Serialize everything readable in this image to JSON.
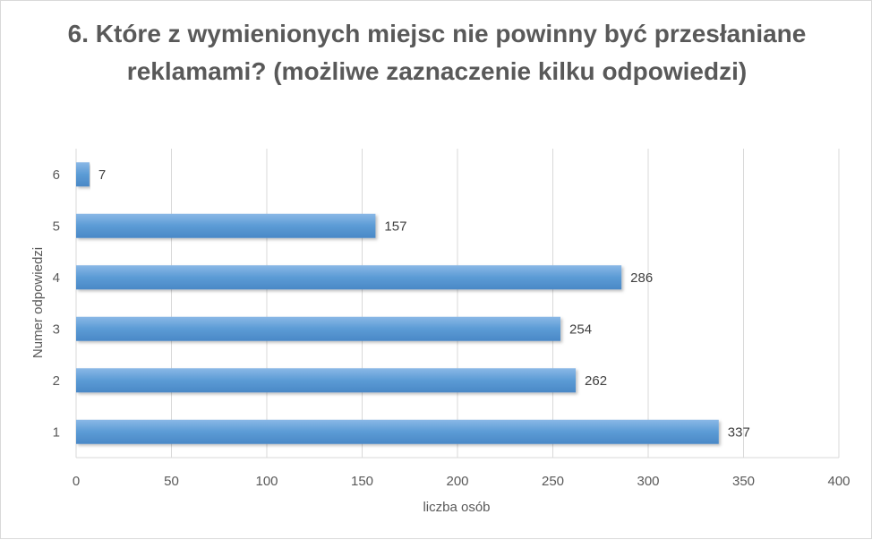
{
  "chart_data": {
    "type": "bar",
    "orientation": "horizontal",
    "title": "6. Które z wymienionych miejsc nie powinny być przesłaniane reklamami? (możliwe zaznaczenie kilku odpowiedzi)",
    "xlabel": "liczba osób",
    "ylabel": "Numer odpowiedzi",
    "categories": [
      "1",
      "2",
      "3",
      "4",
      "5",
      "6"
    ],
    "values": [
      337,
      262,
      254,
      286,
      157,
      7
    ],
    "xlim": [
      0,
      400
    ],
    "x_ticks": [
      0,
      50,
      100,
      150,
      200,
      250,
      300,
      350,
      400
    ],
    "grid": "vertical",
    "legend": "none",
    "data_labels": true,
    "bar_color": "#5b9bd5"
  }
}
